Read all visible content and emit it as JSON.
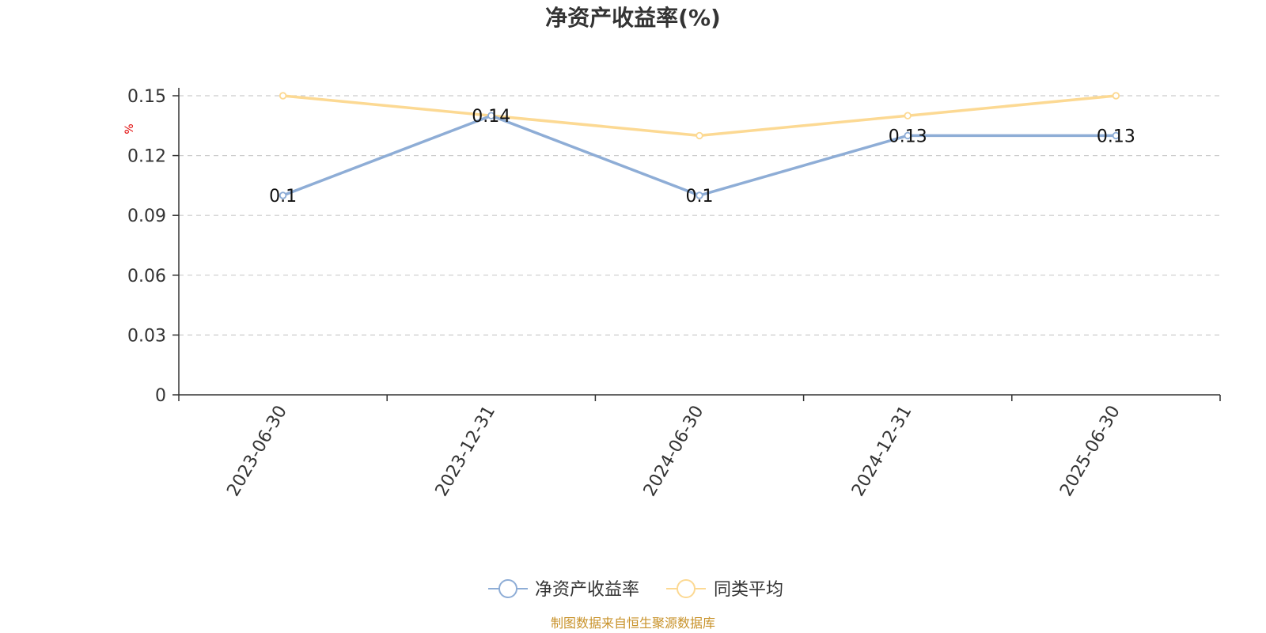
{
  "chart_data": {
    "type": "line",
    "title": "净资产收益率(%)",
    "y_unit": "%",
    "categories": [
      "2023-06-30",
      "2023-12-31",
      "2024-06-30",
      "2024-12-31",
      "2025-06-30"
    ],
    "ylim": [
      0,
      0.15
    ],
    "yticks": [
      0,
      0.03,
      0.06,
      0.09,
      0.12,
      0.15
    ],
    "ytick_labels": [
      "0",
      "0.03",
      "0.06",
      "0.09",
      "0.12",
      "0.15"
    ],
    "grid": true,
    "legend_position": "bottom-center",
    "series": [
      {
        "name": "净资产收益率",
        "values": [
          0.1,
          0.14,
          0.1,
          0.13,
          0.13
        ],
        "labels": [
          "0.1",
          "0.14",
          "0.1",
          "0.13",
          "0.13"
        ],
        "color": "#8eadd6"
      },
      {
        "name": "同类平均",
        "values": [
          0.15,
          0.14,
          0.13,
          0.14,
          0.15
        ],
        "color": "#fcd993"
      }
    ]
  },
  "source_note": "制图数据来自恒生聚源数据库",
  "colors": {
    "axis": "#333333",
    "grid": "#cccccc",
    "source": "#c8922a",
    "unit": "#e00000"
  }
}
